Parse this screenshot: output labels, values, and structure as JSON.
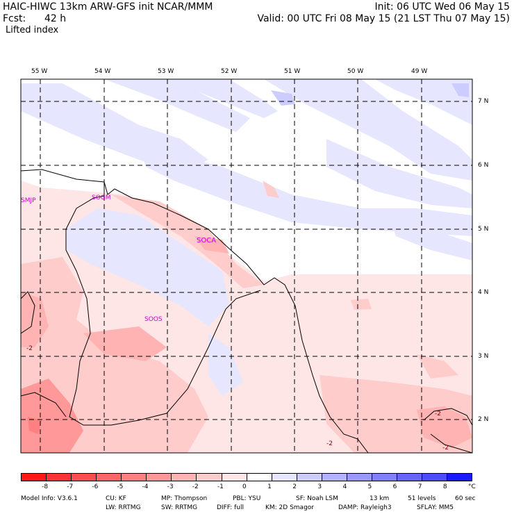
{
  "header": {
    "model_line": "HAIC-HIWC 13km ARW-GFS init   NCAR/MMM",
    "fcst_label": "Fcst:",
    "fcst_value": "42 h",
    "field": "Lifted index",
    "init": "Init: 06 UTC Wed 06 May 15",
    "valid": "Valid: 00 UTC Fri 08 May 15 (21 LST Thu 07 May 15)"
  },
  "map": {
    "lon_labels": [
      "55 W",
      "54 W",
      "53 W",
      "52 W",
      "51 W",
      "50 W",
      "49 W"
    ],
    "lat_labels": [
      "7 N",
      "6 N",
      "5 N",
      "4 N",
      "3 N",
      "2 N"
    ],
    "stations": [
      "SMJP",
      "SOGM",
      "SOCA",
      "SOOS"
    ],
    "contour_labels": [
      "-2",
      "-2",
      "-2",
      "-2"
    ]
  },
  "legend": {
    "ticks": [
      "-8",
      "-7",
      "-6",
      "-5",
      "-4",
      "-3",
      "-2",
      "-1",
      "0",
      "1",
      "2",
      "3",
      "4",
      "5",
      "6",
      "7",
      "8"
    ],
    "unit": "°C",
    "colors": [
      "#ff1a1a",
      "#ff3333",
      "#ff4d4d",
      "#ff6666",
      "#ff8080",
      "#ff9999",
      "#ffb3b3",
      "#ffcccc",
      "#ffe6e6",
      "#ffffff",
      "#e6e6ff",
      "#ccccff",
      "#b3b3ff",
      "#9999ff",
      "#8080ff",
      "#6666ff",
      "#4d4dff",
      "#1a1aff"
    ]
  },
  "footer": {
    "line1": [
      "Model Info: V3.6.1",
      "CU: KF",
      "MP: Thompson",
      "PBL: YSU",
      "SF: Noah LSM",
      "13 km",
      "51 levels",
      "60 sec"
    ],
    "line2": [
      "LW: RRTMG",
      "SW: RRTMG",
      "DIFF: full",
      "KM: 2D Smagor",
      "DAMP: Rayleigh3",
      "SFLAY: MM5"
    ]
  }
}
